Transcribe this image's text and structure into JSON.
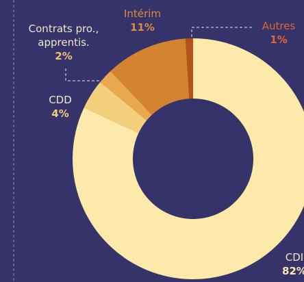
{
  "chart_data": {
    "type": "donut",
    "categories": [
      "CDI",
      "CDD",
      "Contrats pro., apprentis.",
      "Intérim",
      "Autres"
    ],
    "values": [
      82,
      4,
      2,
      11,
      1
    ],
    "value_labels": [
      "82%",
      "4%",
      "2%",
      "11%",
      "1%"
    ],
    "colors": [
      "#fde9a9",
      "#f5d07c",
      "#e8a94e",
      "#d4832f",
      "#b4521c"
    ]
  }
}
